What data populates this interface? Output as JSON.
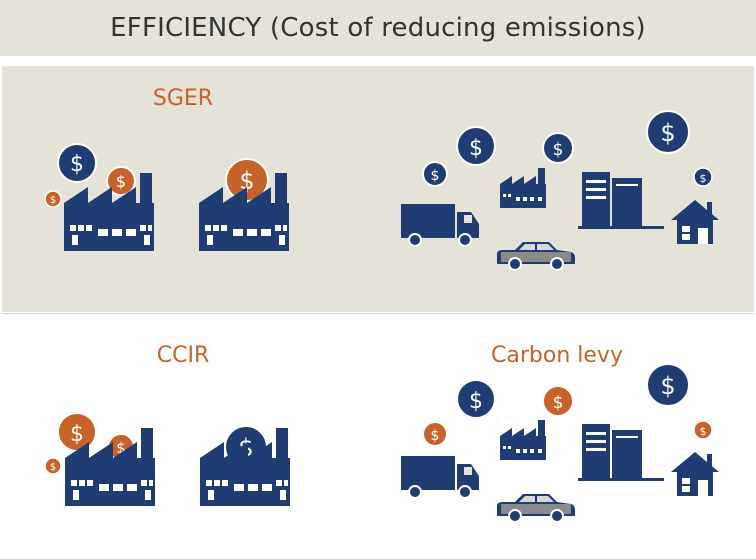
{
  "title": "EFFICIENCY (Cost of reducing emissions)",
  "colors": {
    "navy": "#1f3c73",
    "orange": "#c6622a",
    "gray": "#8a8a8a",
    "panel_bg": "#e5e2d8",
    "label": "#c6622a"
  },
  "top_panel": {
    "left_label": "SGER",
    "right_label": ""
  },
  "bottom_panel": {
    "left_label": "CCIR",
    "right_label": "Carbon levy"
  },
  "icons": {
    "coin_symbol": "$",
    "factory": "factory-icon",
    "truck": "truck-icon",
    "car": "car-icon",
    "building": "office-building-icon",
    "house": "house-icon"
  }
}
